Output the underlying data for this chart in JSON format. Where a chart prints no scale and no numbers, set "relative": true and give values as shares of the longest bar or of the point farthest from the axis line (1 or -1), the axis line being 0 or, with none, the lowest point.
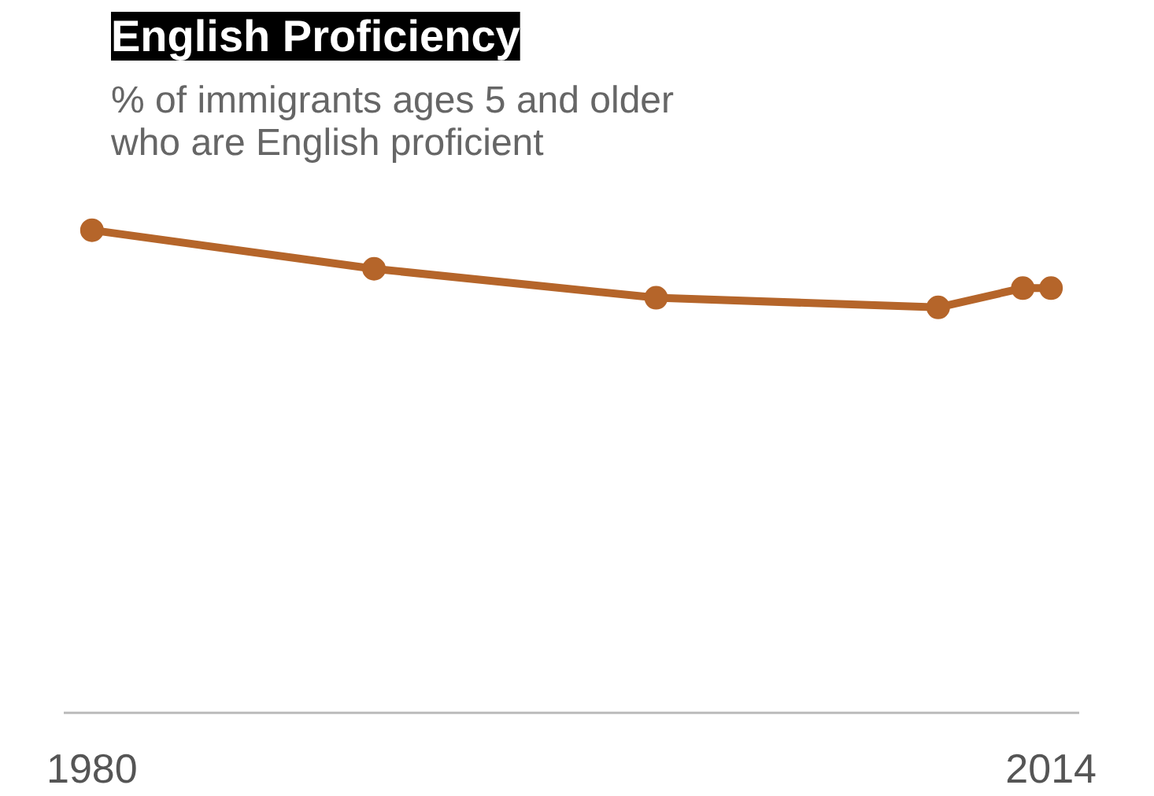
{
  "chart_data": {
    "type": "line",
    "title": "English Proficiency",
    "subtitle": "% of immigrants ages 5 and older who are English proficient",
    "relative": true,
    "x": [
      1980,
      1990,
      2000,
      2010,
      2013,
      2014
    ],
    "xlim": [
      1979,
      2015
    ],
    "xticks": [
      1980,
      2014
    ],
    "tick_labels": "x",
    "grid": false,
    "marker": "circle",
    "line_style": "solid",
    "series": [
      {
        "color": "#b5652a",
        "values": [
          1,
          0.92,
          0.86,
          0.84,
          0.88,
          0.88
        ]
      }
    ]
  }
}
